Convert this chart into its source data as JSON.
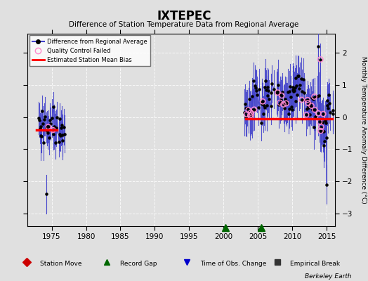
{
  "title": "IXTEPEC",
  "subtitle": "Difference of Station Temperature Data from Regional Average",
  "ylabel": "Monthly Temperature Anomaly Difference (°C)",
  "ylim": [
    -3.4,
    2.6
  ],
  "xlim": [
    1971.5,
    2016.2
  ],
  "yticks": [
    -3,
    -2,
    -1,
    0,
    1,
    2
  ],
  "xticks": [
    1975,
    1980,
    1985,
    1990,
    1995,
    2000,
    2005,
    2010,
    2015
  ],
  "background_color": "#e0e0e0",
  "plot_background": "#e0e0e0",
  "line_color": "#4444cc",
  "marker_color": "#000000",
  "qc_color": "#ff88cc",
  "bias_color": "#ff0000",
  "grid_color": "#ffffff",
  "watermark": "Berkeley Earth",
  "station_move_color": "#cc0000",
  "record_gap_color": "#006600",
  "obs_change_color": "#0000cc",
  "empirical_break_color": "#333333",
  "record_gap_x": 2000.3,
  "obs_change_x": 2005.5,
  "bias_x_start": 2003.2,
  "bias_x_end": 2015.8,
  "bias_y": -0.05,
  "early_bias_x_start": 1972.8,
  "early_bias_x_end": 1975.8,
  "early_bias_y": -0.4
}
